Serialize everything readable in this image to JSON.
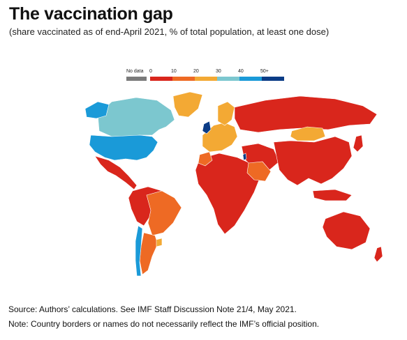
{
  "title": "The vaccination gap",
  "subtitle": "(share vaccinated as of end-April 2021, % of total population, at least one dose)",
  "legend": {
    "items": [
      {
        "label": "No data",
        "color": "#7a7a7a"
      },
      {
        "label": "0",
        "color": "#d9261c"
      },
      {
        "label": "10",
        "color": "#ee6a24"
      },
      {
        "label": "20",
        "color": "#f3a934"
      },
      {
        "label": "30",
        "color": "#7cc7cf"
      },
      {
        "label": "40",
        "color": "#1a9ad8"
      },
      {
        "label": "50+",
        "color": "#0b3c86"
      }
    ]
  },
  "regions": [
    {
      "name": "north-america",
      "color": "#7cc7cf"
    },
    {
      "name": "united-states",
      "color": "#1a9ad8"
    },
    {
      "name": "alaska",
      "color": "#1a9ad8"
    },
    {
      "name": "greenland",
      "color": "#f3a934"
    },
    {
      "name": "mexico-central-america",
      "color": "#d9261c"
    },
    {
      "name": "south-america-north",
      "color": "#d9261c"
    },
    {
      "name": "brazil",
      "color": "#ee6a24"
    },
    {
      "name": "chile",
      "color": "#1a9ad8"
    },
    {
      "name": "argentina",
      "color": "#ee6a24"
    },
    {
      "name": "uruguay",
      "color": "#f3a934"
    },
    {
      "name": "africa",
      "color": "#d9261c"
    },
    {
      "name": "morocco",
      "color": "#ee6a24"
    },
    {
      "name": "europe",
      "color": "#f3a934"
    },
    {
      "name": "united-kingdom",
      "color": "#0b3c86"
    },
    {
      "name": "scandinavia",
      "color": "#f3a934"
    },
    {
      "name": "russia",
      "color": "#d9261c"
    },
    {
      "name": "mongolia",
      "color": "#f3a934"
    },
    {
      "name": "middle-east",
      "color": "#d9261c"
    },
    {
      "name": "saudi-arabia",
      "color": "#ee6a24"
    },
    {
      "name": "israel",
      "color": "#0b3c86"
    },
    {
      "name": "asia",
      "color": "#d9261c"
    },
    {
      "name": "australia",
      "color": "#d9261c"
    },
    {
      "name": "new-zealand",
      "color": "#d9261c"
    },
    {
      "name": "japan",
      "color": "#d9261c"
    }
  ],
  "footer": {
    "source": "Source: Authors’ calculations. See IMF Staff Discussion Note 21/4, May 2021.",
    "note": "Note: Country borders or names do not necessarily reflect the IMF’s official position."
  }
}
